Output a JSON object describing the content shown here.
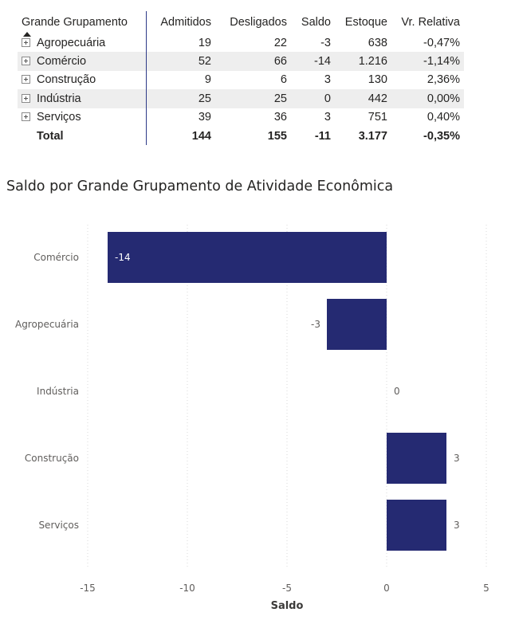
{
  "table": {
    "columns": [
      "Grande Grupamento",
      "Admitidos",
      "Desligados",
      "Saldo",
      "Estoque",
      "Vr. Relativa"
    ],
    "rows": [
      {
        "name": "Agropecuária",
        "admitidos": "19",
        "desligados": "22",
        "saldo": "-3",
        "estoque": "638",
        "vr_relativa": "-0,47%"
      },
      {
        "name": "Comércio",
        "admitidos": "52",
        "desligados": "66",
        "saldo": "-14",
        "estoque": "1.216",
        "vr_relativa": "-1,14%"
      },
      {
        "name": "Construção",
        "admitidos": "9",
        "desligados": "6",
        "saldo": "3",
        "estoque": "130",
        "vr_relativa": "2,36%"
      },
      {
        "name": "Indústria",
        "admitidos": "25",
        "desligados": "25",
        "saldo": "0",
        "estoque": "442",
        "vr_relativa": "0,00%"
      },
      {
        "name": "Serviços",
        "admitidos": "39",
        "desligados": "36",
        "saldo": "3",
        "estoque": "751",
        "vr_relativa": "0,40%"
      }
    ],
    "total": {
      "name": "Total",
      "admitidos": "144",
      "desligados": "155",
      "saldo": "-11",
      "estoque": "3.177",
      "vr_relativa": "-0,35%"
    }
  },
  "chart_data": {
    "type": "bar",
    "orientation": "horizontal",
    "title": "Saldo por Grande Grupamento de Atividade Econômica",
    "categories": [
      "Comércio",
      "Agropecuária",
      "Indústria",
      "Construção",
      "Serviços"
    ],
    "values": [
      -14,
      -3,
      0,
      3,
      3
    ],
    "data_labels": [
      "-14",
      "-3",
      "0",
      "3",
      "3"
    ],
    "xlabel": "Saldo",
    "ylabel": "",
    "xlim": [
      -15,
      5
    ],
    "x_ticks": [
      -15,
      -10,
      -5,
      0,
      5
    ],
    "x_tick_labels": [
      "-15",
      "-10",
      "-5",
      "0",
      "5"
    ],
    "grid": true,
    "bar_color": "#252a72"
  }
}
